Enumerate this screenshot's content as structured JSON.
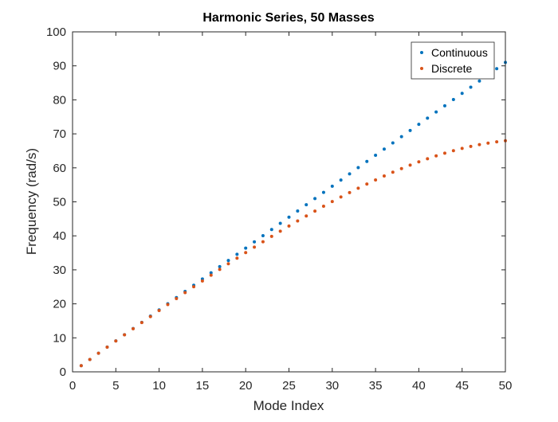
{
  "chart_data": {
    "type": "scatter",
    "title": "Harmonic Series, 50 Masses",
    "xlabel": "Mode Index",
    "ylabel": "Frequency (rad/s)",
    "xlim": [
      0,
      50
    ],
    "ylim": [
      0,
      100
    ],
    "xticks": [
      0,
      5,
      10,
      15,
      20,
      25,
      30,
      35,
      40,
      45,
      50
    ],
    "yticks": [
      0,
      10,
      20,
      30,
      40,
      50,
      60,
      70,
      80,
      90,
      100
    ],
    "grid": false,
    "legend_position": "top-right",
    "x": [
      1,
      2,
      3,
      4,
      5,
      6,
      7,
      8,
      9,
      10,
      11,
      12,
      13,
      14,
      15,
      16,
      17,
      18,
      19,
      20,
      21,
      22,
      23,
      24,
      25,
      26,
      27,
      28,
      29,
      30,
      31,
      32,
      33,
      34,
      35,
      36,
      37,
      38,
      39,
      40,
      41,
      42,
      43,
      44,
      45,
      46,
      47,
      48,
      49,
      50
    ],
    "series": [
      {
        "name": "Continuous",
        "color": "#0072BD",
        "values": [
          1.82,
          3.64,
          5.46,
          7.28,
          9.1,
          10.92,
          12.74,
          14.56,
          16.38,
          18.2,
          20.02,
          21.84,
          23.66,
          25.48,
          27.3,
          29.12,
          30.94,
          32.76,
          34.58,
          36.4,
          38.22,
          40.04,
          41.86,
          43.68,
          45.5,
          47.32,
          49.14,
          50.96,
          52.78,
          54.6,
          56.42,
          58.24,
          60.06,
          61.88,
          63.7,
          65.52,
          67.34,
          69.16,
          70.98,
          72.8,
          74.62,
          76.44,
          78.26,
          80.08,
          81.9,
          83.72,
          85.54,
          87.36,
          89.18,
          91.0
        ]
      },
      {
        "name": "Discrete",
        "color": "#D95319",
        "values": [
          1.82,
          3.64,
          5.46,
          7.27,
          9.08,
          10.89,
          12.69,
          14.48,
          16.26,
          18.03,
          19.8,
          21.55,
          23.29,
          25.02,
          26.73,
          28.43,
          30.12,
          31.78,
          33.43,
          35.06,
          36.67,
          38.26,
          39.83,
          41.37,
          42.89,
          44.38,
          45.85,
          47.29,
          48.7,
          50.08,
          51.42,
          52.73,
          54.01,
          55.25,
          56.45,
          57.61,
          58.72,
          59.78,
          60.8,
          61.76,
          62.67,
          63.52,
          64.31,
          65.04,
          65.71,
          66.3,
          66.82,
          67.27,
          67.65,
          67.96
        ]
      }
    ]
  }
}
